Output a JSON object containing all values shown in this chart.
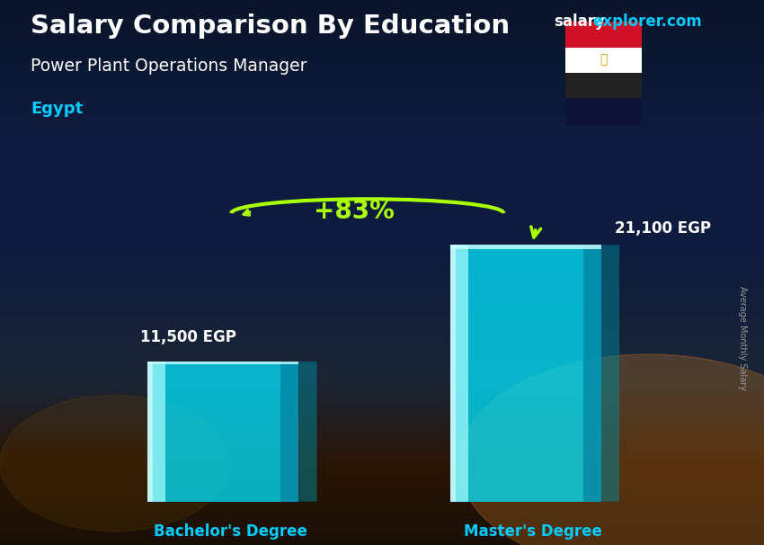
{
  "title_main": "Salary Comparison By Education",
  "subtitle": "Power Plant Operations Manager",
  "country": "Egypt",
  "watermark_salary": "salary",
  "watermark_rest": "explorer.com",
  "ylabel_right": "Average Monthly Salary",
  "categories": [
    "Bachelor's Degree",
    "Master's Degree"
  ],
  "values": [
    11500,
    21100
  ],
  "value_labels": [
    "11,500 EGP",
    "21,100 EGP"
  ],
  "pct_change": "+83%",
  "bar_face_color": "#00E5FF",
  "bar_alpha": 0.75,
  "bar_edge_color": "#FFFFFF",
  "bg_top_color": "#0d1b3e",
  "bg_bottom_color": "#2a1a0a",
  "title_color": "#FFFFFF",
  "subtitle_color": "#FFFFFF",
  "country_color": "#00CCFF",
  "pct_color": "#AAFF00",
  "value_label_color": "#FFFFFF",
  "xlabel_color": "#00CCFF",
  "watermark_salary_color": "#FFFFFF",
  "watermark_explorer_color": "#00CCFF",
  "side_label_color": "#AAAAAA",
  "ylim": [
    0,
    26000
  ],
  "bar_positions": [
    0.28,
    0.72
  ],
  "bar_width": 0.22,
  "figsize": [
    8.5,
    6.06
  ],
  "dpi": 100
}
